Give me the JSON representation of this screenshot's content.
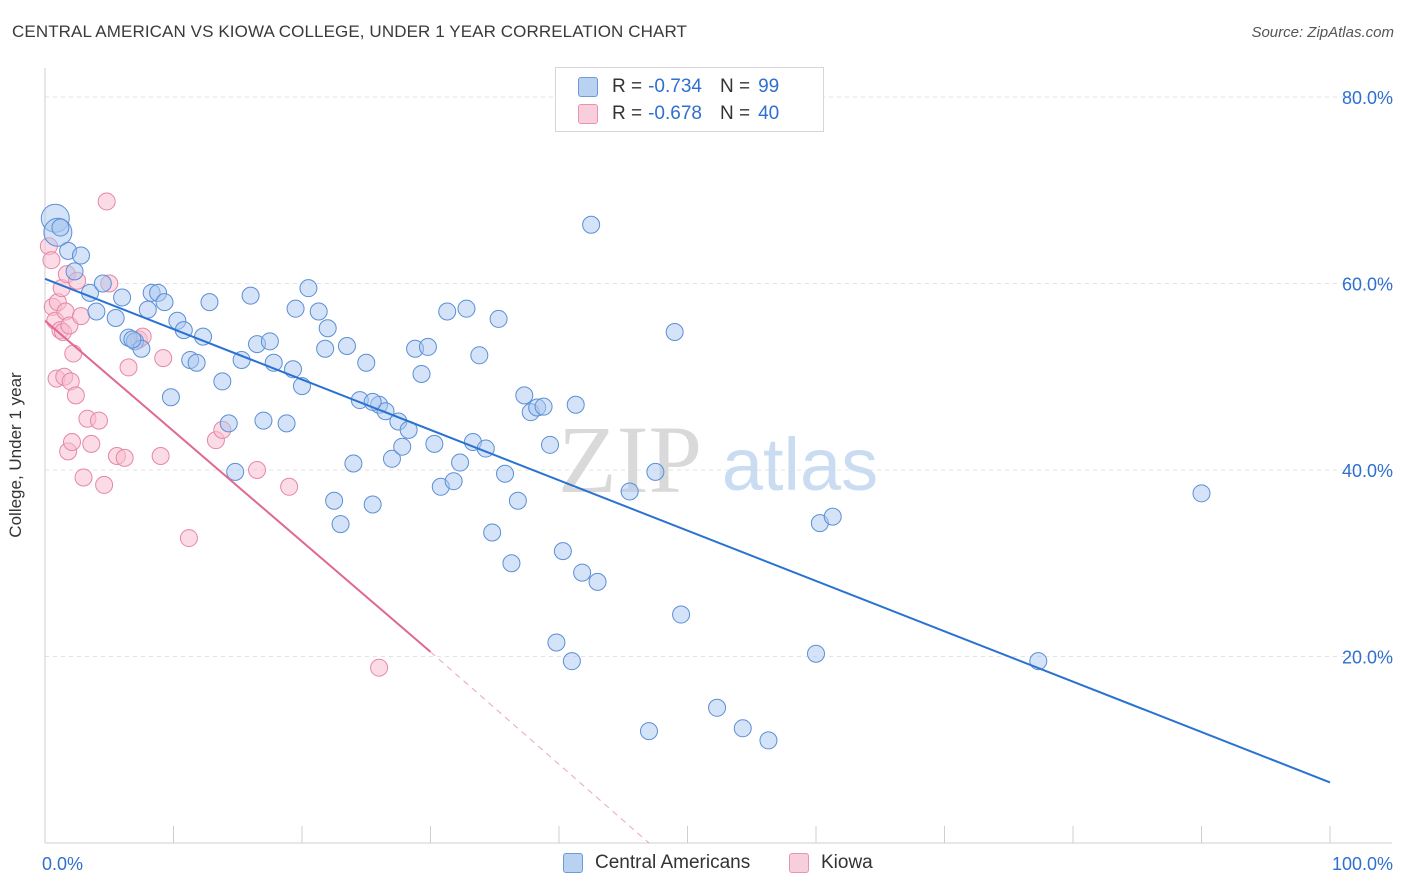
{
  "title": "CENTRAL AMERICAN VS KIOWA COLLEGE, UNDER 1 YEAR CORRELATION CHART",
  "source": "Source: ZipAtlas.com",
  "watermark": {
    "zip": "ZIP",
    "atlas": "atlas"
  },
  "legend": {
    "rows": [
      {
        "r_label": "R =",
        "r_value": "-0.734",
        "n_label": "N =",
        "n_value": "99"
      },
      {
        "r_label": "R =",
        "r_value": "-0.678",
        "n_label": "N =",
        "n_value": "40"
      }
    ]
  },
  "bottom_legend": [
    "Central Americans",
    "Kiowa"
  ],
  "colors": {
    "blue_fill": "#a9c8ef",
    "blue_stroke": "#5b8fd6",
    "blue_line": "#2a72d2",
    "pink_fill": "#f7bdd0",
    "pink_stroke": "#e687a6",
    "pink_line": "#e06890",
    "tick_text": "#2f6fd0",
    "grid": "#e3e3e3"
  },
  "chart_data": {
    "type": "scatter",
    "title": "CENTRAL AMERICAN VS KIOWA COLLEGE, UNDER 1 YEAR CORRELATION CHART",
    "xlabel": "",
    "ylabel": "College, Under 1 year",
    "xlim": [
      0,
      100
    ],
    "ylim": [
      0,
      80
    ],
    "x_tick_labels": [
      {
        "value": 0,
        "label": "0.0%"
      },
      {
        "value": 100,
        "label": "100.0%"
      }
    ],
    "y_tick_labels": [
      {
        "value": 20,
        "label": "20.0%"
      },
      {
        "value": 40,
        "label": "40.0%"
      },
      {
        "value": 60,
        "label": "60.0%"
      },
      {
        "value": 80,
        "label": "80.0%"
      }
    ],
    "series": [
      {
        "name": "Central Americans",
        "r": -0.734,
        "n": 99,
        "trend": {
          "x": [
            0,
            100
          ],
          "y": [
            60.5,
            6.5
          ]
        },
        "points": [
          {
            "x": 0.8,
            "y": 67.0,
            "big": true
          },
          {
            "x": 1.0,
            "y": 65.5,
            "big": true
          },
          {
            "x": 1.8,
            "y": 63.5
          },
          {
            "x": 2.3,
            "y": 61.3
          },
          {
            "x": 2.8,
            "y": 63.0
          },
          {
            "x": 3.5,
            "y": 59.0
          },
          {
            "x": 4.0,
            "y": 57.0
          },
          {
            "x": 4.5,
            "y": 60.0
          },
          {
            "x": 5.5,
            "y": 56.3
          },
          {
            "x": 6.0,
            "y": 58.5
          },
          {
            "x": 6.5,
            "y": 54.2
          },
          {
            "x": 7.0,
            "y": 53.8
          },
          {
            "x": 7.5,
            "y": 53.0
          },
          {
            "x": 8.0,
            "y": 57.2
          },
          {
            "x": 8.3,
            "y": 59.0
          },
          {
            "x": 8.8,
            "y": 59.0
          },
          {
            "x": 9.3,
            "y": 58.0
          },
          {
            "x": 9.8,
            "y": 47.8
          },
          {
            "x": 10.3,
            "y": 56.0
          },
          {
            "x": 10.8,
            "y": 55.0
          },
          {
            "x": 11.3,
            "y": 51.8
          },
          {
            "x": 11.8,
            "y": 51.5
          },
          {
            "x": 12.3,
            "y": 54.3
          },
          {
            "x": 12.8,
            "y": 58.0
          },
          {
            "x": 13.8,
            "y": 49.5
          },
          {
            "x": 14.3,
            "y": 45.0
          },
          {
            "x": 14.8,
            "y": 39.8
          },
          {
            "x": 15.3,
            "y": 51.8
          },
          {
            "x": 16.0,
            "y": 58.7
          },
          {
            "x": 16.5,
            "y": 53.5
          },
          {
            "x": 17.0,
            "y": 45.3
          },
          {
            "x": 17.5,
            "y": 53.8
          },
          {
            "x": 17.8,
            "y": 51.5
          },
          {
            "x": 18.8,
            "y": 45.0
          },
          {
            "x": 19.3,
            "y": 50.8
          },
          {
            "x": 19.5,
            "y": 57.3
          },
          {
            "x": 20.0,
            "y": 49.0
          },
          {
            "x": 20.5,
            "y": 59.5
          },
          {
            "x": 21.3,
            "y": 57.0
          },
          {
            "x": 21.8,
            "y": 53.0
          },
          {
            "x": 22.0,
            "y": 55.2
          },
          {
            "x": 22.5,
            "y": 36.7
          },
          {
            "x": 23.0,
            "y": 34.2
          },
          {
            "x": 23.5,
            "y": 53.3
          },
          {
            "x": 24.0,
            "y": 40.7
          },
          {
            "x": 24.5,
            "y": 47.5
          },
          {
            "x": 25.0,
            "y": 51.5
          },
          {
            "x": 25.5,
            "y": 36.3
          },
          {
            "x": 26.0,
            "y": 47.0
          },
          {
            "x": 26.5,
            "y": 46.3
          },
          {
            "x": 27.0,
            "y": 41.2
          },
          {
            "x": 27.5,
            "y": 45.2
          },
          {
            "x": 27.8,
            "y": 42.5
          },
          {
            "x": 28.3,
            "y": 44.3
          },
          {
            "x": 28.8,
            "y": 53.0
          },
          {
            "x": 29.3,
            "y": 50.3
          },
          {
            "x": 29.8,
            "y": 53.2
          },
          {
            "x": 30.3,
            "y": 42.8
          },
          {
            "x": 30.8,
            "y": 38.2
          },
          {
            "x": 31.3,
            "y": 57.0
          },
          {
            "x": 31.8,
            "y": 38.8
          },
          {
            "x": 32.3,
            "y": 40.8
          },
          {
            "x": 32.8,
            "y": 57.3
          },
          {
            "x": 33.3,
            "y": 43.0
          },
          {
            "x": 33.8,
            "y": 52.3
          },
          {
            "x": 34.3,
            "y": 42.3
          },
          {
            "x": 34.8,
            "y": 33.3
          },
          {
            "x": 35.3,
            "y": 56.2
          },
          {
            "x": 35.8,
            "y": 39.6
          },
          {
            "x": 36.3,
            "y": 30.0
          },
          {
            "x": 36.8,
            "y": 36.7
          },
          {
            "x": 37.3,
            "y": 48.0
          },
          {
            "x": 37.8,
            "y": 46.2
          },
          {
            "x": 38.3,
            "y": 46.7
          },
          {
            "x": 38.8,
            "y": 46.8
          },
          {
            "x": 39.3,
            "y": 42.7
          },
          {
            "x": 39.8,
            "y": 21.5
          },
          {
            "x": 40.3,
            "y": 31.3
          },
          {
            "x": 41.0,
            "y": 19.5
          },
          {
            "x": 41.3,
            "y": 47.0
          },
          {
            "x": 41.8,
            "y": 29.0
          },
          {
            "x": 42.5,
            "y": 66.3
          },
          {
            "x": 43.0,
            "y": 28.0
          },
          {
            "x": 45.5,
            "y": 37.7
          },
          {
            "x": 47.0,
            "y": 12.0
          },
          {
            "x": 47.5,
            "y": 39.8
          },
          {
            "x": 49.0,
            "y": 54.8
          },
          {
            "x": 49.5,
            "y": 24.5
          },
          {
            "x": 52.3,
            "y": 14.5
          },
          {
            "x": 54.3,
            "y": 12.3
          },
          {
            "x": 56.3,
            "y": 11.0
          },
          {
            "x": 60.0,
            "y": 20.3
          },
          {
            "x": 60.3,
            "y": 34.3
          },
          {
            "x": 61.3,
            "y": 35.0
          },
          {
            "x": 77.3,
            "y": 19.5
          },
          {
            "x": 90.0,
            "y": 37.5
          },
          {
            "x": 1.2,
            "y": 66.0
          },
          {
            "x": 6.8,
            "y": 54.0
          },
          {
            "x": 25.5,
            "y": 47.3
          }
        ]
      },
      {
        "name": "Kiowa",
        "r": -0.678,
        "n": 40,
        "trend": {
          "x": [
            0,
            30
          ],
          "y": [
            56.0,
            20.5
          ]
        },
        "trend_dashed": {
          "x": [
            30,
            47
          ],
          "y": [
            20.5,
            0
          ]
        },
        "points": [
          {
            "x": 0.3,
            "y": 64.0
          },
          {
            "x": 0.5,
            "y": 62.5
          },
          {
            "x": 0.6,
            "y": 57.5
          },
          {
            "x": 0.8,
            "y": 56.0
          },
          {
            "x": 0.9,
            "y": 49.8
          },
          {
            "x": 1.0,
            "y": 58.0
          },
          {
            "x": 1.2,
            "y": 55.0
          },
          {
            "x": 1.3,
            "y": 59.5
          },
          {
            "x": 1.4,
            "y": 54.8
          },
          {
            "x": 1.5,
            "y": 50.0
          },
          {
            "x": 1.6,
            "y": 57.0
          },
          {
            "x": 1.7,
            "y": 61.0
          },
          {
            "x": 1.8,
            "y": 42.0
          },
          {
            "x": 1.9,
            "y": 55.5
          },
          {
            "x": 2.0,
            "y": 49.5
          },
          {
            "x": 2.1,
            "y": 43.0
          },
          {
            "x": 2.2,
            "y": 52.5
          },
          {
            "x": 2.4,
            "y": 48.0
          },
          {
            "x": 2.5,
            "y": 60.3
          },
          {
            "x": 2.8,
            "y": 56.5
          },
          {
            "x": 3.0,
            "y": 39.2
          },
          {
            "x": 3.3,
            "y": 45.5
          },
          {
            "x": 3.6,
            "y": 42.8
          },
          {
            "x": 4.2,
            "y": 45.3
          },
          {
            "x": 4.6,
            "y": 38.4
          },
          {
            "x": 5.0,
            "y": 60.0
          },
          {
            "x": 5.6,
            "y": 41.5
          },
          {
            "x": 6.2,
            "y": 41.3
          },
          {
            "x": 6.5,
            "y": 51.0
          },
          {
            "x": 7.3,
            "y": 54.0
          },
          {
            "x": 7.6,
            "y": 54.3
          },
          {
            "x": 9.0,
            "y": 41.5
          },
          {
            "x": 9.2,
            "y": 52.0
          },
          {
            "x": 11.2,
            "y": 32.7
          },
          {
            "x": 13.3,
            "y": 43.2
          },
          {
            "x": 13.8,
            "y": 44.3
          },
          {
            "x": 16.5,
            "y": 40.0
          },
          {
            "x": 19.0,
            "y": 38.2
          },
          {
            "x": 26.0,
            "y": 18.8
          },
          {
            "x": 4.8,
            "y": 68.8
          }
        ]
      }
    ]
  }
}
